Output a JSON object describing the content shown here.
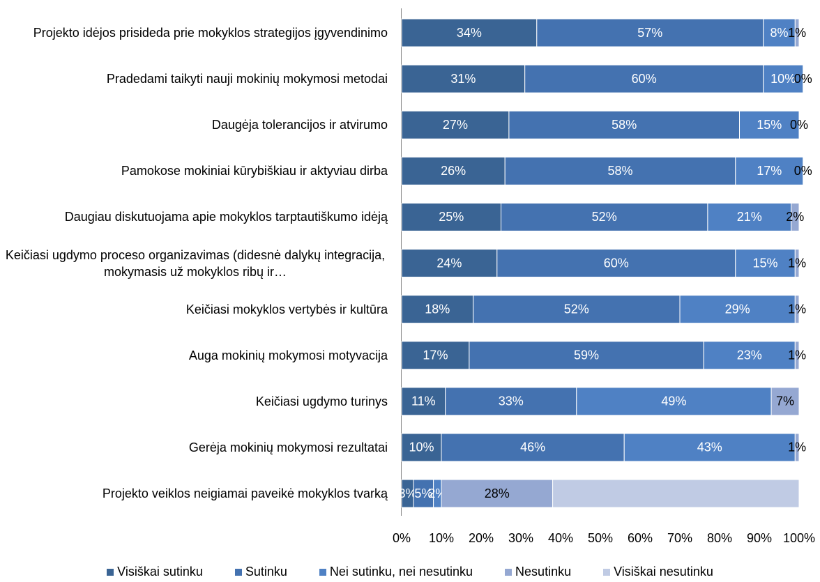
{
  "chart_data": {
    "type": "stacked-barh",
    "categories": [
      "Projekto idėjos prisideda prie mokyklos strategijos įgyvendinimo",
      "Pradedami taikyti nauji mokinių mokymosi metodai",
      "Daugėja tolerancijos ir atvirumo",
      "Pamokose mokiniai kūrybiškiau ir aktyviau dirba",
      "Daugiau diskutuojama apie mokyklos tarptautiškumo idėją",
      "Keičiasi ugdymo proceso organizavimas (didesnė dalykų integracija, mokymasis už mokyklos ribų ir…",
      "Keičiasi mokyklos vertybės ir kultūra",
      "Auga mokinių mokymosi motyvacija",
      "Keičiasi ugdymo turinys",
      "Gerėja mokinių mokymosi rezultatai",
      "Projekto veiklos neigiamai paveikė mokyklos tvarką"
    ],
    "series": [
      {
        "name": "Visiškai sutinku",
        "color": "#3a6494",
        "label_color": "#ffffff",
        "values": [
          34,
          31,
          27,
          26,
          25,
          24,
          18,
          17,
          11,
          10,
          3
        ],
        "value_labels": [
          "34%",
          "31%",
          "27%",
          "26%",
          "25%",
          "24%",
          "18%",
          "17%",
          "11%",
          "10%",
          "3%"
        ]
      },
      {
        "name": "Sutinku",
        "color": "#4472b0",
        "label_color": "#ffffff",
        "values": [
          57,
          60,
          58,
          58,
          52,
          60,
          52,
          59,
          33,
          46,
          5
        ],
        "value_labels": [
          "57%",
          "60%",
          "58%",
          "58%",
          "52%",
          "60%",
          "52%",
          "59%",
          "33%",
          "46%",
          "5%"
        ]
      },
      {
        "name": "Nei sutinku, nei nesutinku",
        "color": "#4f81c4",
        "label_color": "#ffffff",
        "values": [
          8,
          10,
          15,
          17,
          21,
          15,
          29,
          23,
          49,
          43,
          2
        ],
        "value_labels": [
          "8%",
          "10%",
          "15%",
          "17%",
          "21%",
          "15%",
          "29%",
          "23%",
          "49%",
          "43%",
          "2%"
        ]
      },
      {
        "name": "Nesutinku",
        "color": "#95a8d2",
        "label_color": "#000000",
        "values": [
          1,
          0,
          0,
          0,
          2,
          1,
          1,
          1,
          7,
          1,
          28
        ],
        "value_labels": [
          "1%",
          "0%",
          "0%",
          "0%",
          "2%",
          "1%",
          "1%",
          "1%",
          "7%",
          "1%",
          "28%"
        ]
      },
      {
        "name": "Visiškai nesutinku",
        "color": "#c0cbe4",
        "label_color": "#000000",
        "values": [
          0,
          0,
          0,
          0,
          0,
          0,
          0,
          0,
          0,
          0,
          62
        ],
        "value_labels": [
          null,
          null,
          null,
          null,
          null,
          null,
          null,
          null,
          null,
          null,
          null
        ]
      }
    ],
    "xlim": [
      0,
      100
    ],
    "xticks": [
      {
        "value": 0,
        "label": "0%"
      },
      {
        "value": 10,
        "label": "10%"
      },
      {
        "value": 20,
        "label": "20%"
      },
      {
        "value": 30,
        "label": "30%"
      },
      {
        "value": 40,
        "label": "40%"
      },
      {
        "value": 50,
        "label": "50%"
      },
      {
        "value": 60,
        "label": "60%"
      },
      {
        "value": 70,
        "label": "70%"
      },
      {
        "value": 80,
        "label": "80%"
      },
      {
        "value": 90,
        "label": "90%"
      },
      {
        "value": 100,
        "label": "100%"
      }
    ],
    "legend": "bottom"
  }
}
